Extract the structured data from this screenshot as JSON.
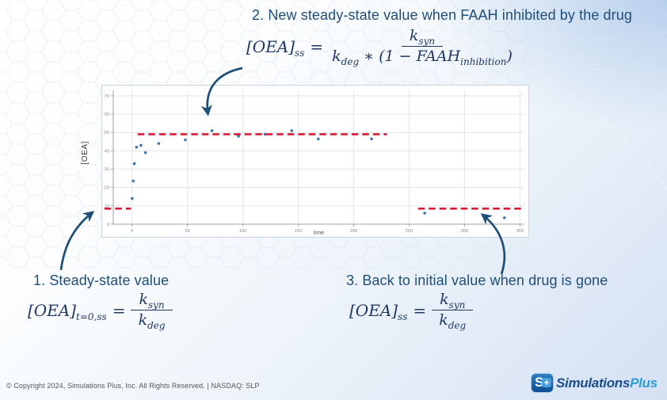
{
  "slide": {
    "step2_title": "2. New steady-state value when FAAH inhibited by the drug",
    "step1_title": "1. Steady-state value",
    "step3_title": "3. Back to initial value when drug is gone"
  },
  "formulas": {
    "f2": {
      "lhs": "[OEA]",
      "lhs_sub": "ss",
      "eq": "=",
      "num": "k",
      "num_sub": "syn",
      "den_k": "k",
      "den_k_sub": "deg",
      "den_mid": " ∗ (1 − ",
      "den_faah": "FAAH",
      "den_faah_sub": "inhibition",
      "den_close": ")"
    },
    "f1": {
      "lhs": "[OEA]",
      "lhs_sub": "t=0,ss",
      "eq": "=",
      "num": "k",
      "num_sub": "syn",
      "den": "k",
      "den_sub": "deg"
    },
    "f3": {
      "lhs": "[OEA]",
      "lhs_sub": "ss",
      "eq": "=",
      "num": "k",
      "num_sub": "syn",
      "den": "k",
      "den_sub": "deg"
    }
  },
  "footer": {
    "copyright": "© Copyright 2024, Simulations Plus, Inc. All Rights Reserved.  |  NASDAQ: SLP",
    "logo_s": "S",
    "logo_plus": "+",
    "logo_name": "Simulations",
    "logo_suffix": "Plus"
  },
  "chart_data": {
    "type": "scatter",
    "title": "",
    "x_label": "time",
    "y_label": "[OEA]",
    "x_ticks": [
      0,
      50,
      100,
      150,
      200,
      250,
      300,
      350
    ],
    "y_ticks": [
      0,
      10,
      20,
      30,
      40,
      50,
      60,
      70
    ],
    "x_range": [
      -17,
      354
    ],
    "y_range": [
      0,
      73
    ],
    "grid": true,
    "legend": "none",
    "points": [
      [
        0,
        14
      ],
      [
        1,
        23.5
      ],
      [
        2,
        33
      ],
      [
        4,
        42
      ],
      [
        8,
        43
      ],
      [
        12,
        39
      ],
      [
        24,
        44
      ],
      [
        48,
        46
      ],
      [
        72,
        51
      ],
      [
        96,
        48
      ],
      [
        120,
        49
      ],
      [
        144,
        51
      ],
      [
        168,
        46.5
      ],
      [
        216,
        46.5
      ],
      [
        264,
        6
      ],
      [
        336,
        3.5
      ]
    ],
    "reference_lines": [
      {
        "name": "initial-steady-state-segment-left",
        "y": 8.5,
        "x_start": -25,
        "x_end": -1
      },
      {
        "name": "inhibited-steady-state-line",
        "y": 49,
        "x_start": 5,
        "x_end": 230
      },
      {
        "name": "return-to-initial-steady-state-line",
        "y": 8.5,
        "x_start": 258,
        "x_end": 353
      }
    ],
    "point_color": "#3E76AD",
    "dashed_line_color": "#D6102D"
  },
  "colors": {
    "annotation_text": "#1F4E79",
    "formula_text": "#203864",
    "arrow": "#1F4E79"
  }
}
